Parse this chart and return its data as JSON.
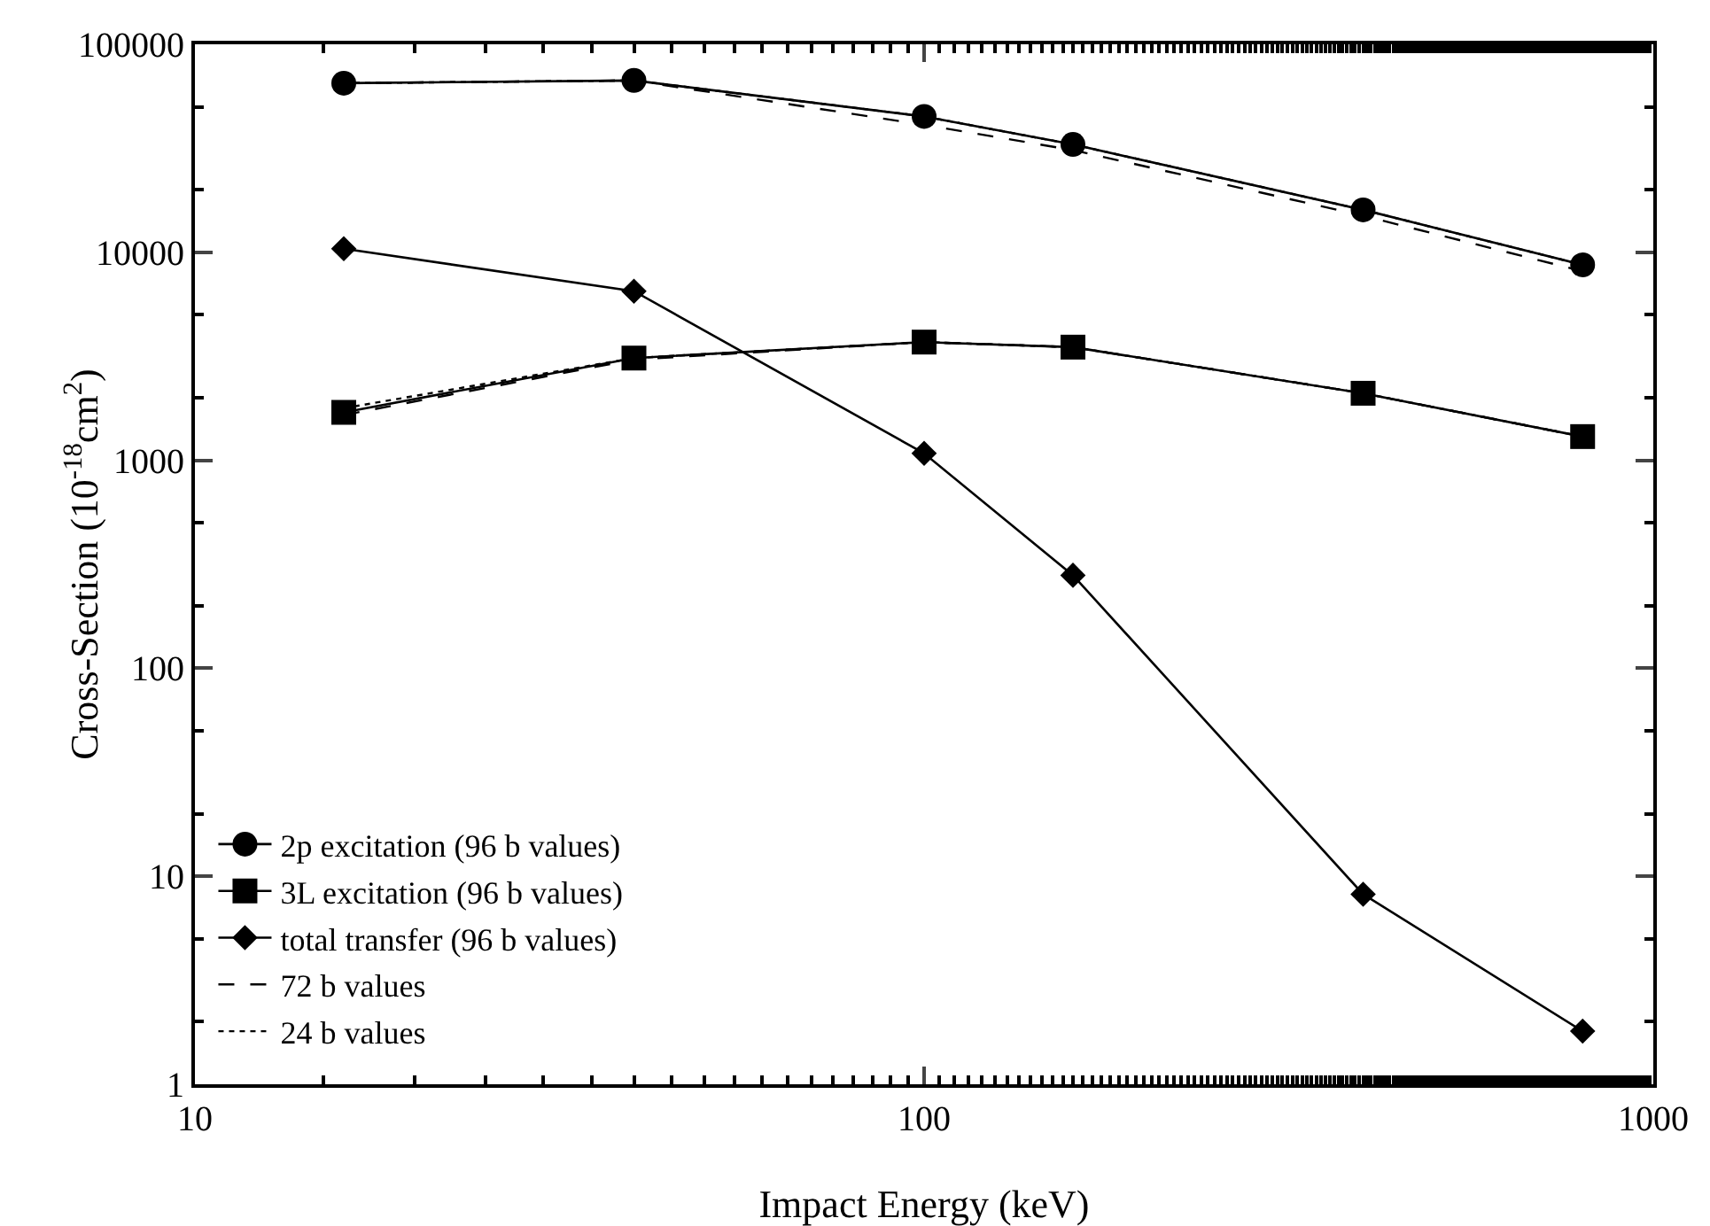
{
  "chart_data": {
    "type": "line",
    "xlabel": "Impact Energy (keV)",
    "ylabel": "Cross-Section (10$^{-18}$cm$^{2}$)",
    "x": [
      16,
      40,
      100,
      160,
      400,
      800
    ],
    "log": "xy",
    "xlim": [
      10,
      1000
    ],
    "xticks": [
      10,
      100,
      1000
    ],
    "ylim": [
      1,
      100000
    ],
    "yticks": [
      1,
      10,
      100,
      1000,
      10000,
      100000
    ],
    "grid": false,
    "legend": "bottom left",
    "series": [
      {
        "name": "2p excitation (96 b values)",
        "color": "#000000",
        "marker": "circle",
        "line_style": "solid",
        "values": [
          65000,
          67000,
          45000,
          33000,
          16000,
          8700
        ]
      },
      {
        "name": "3L excitation (96 b values)",
        "color": "#000000",
        "marker": "square",
        "line_style": "solid",
        "values": [
          1700,
          3100,
          3700,
          3500,
          2100,
          1300
        ]
      },
      {
        "name": "total transfer (96 b values)",
        "color": "#000000",
        "marker": "diamond",
        "line_style": "solid",
        "values": [
          10400,
          6500,
          1080,
          280,
          8.2,
          1.8
        ]
      },
      {
        "name": "72 b values",
        "color": "#000000",
        "marker": "none",
        "line_style": "dashed",
        "values": [
          65000,
          67000,
          41000,
          31000,
          15000,
          8100
        ]
      },
      {
        "color": "#000000",
        "marker": "none",
        "line_style": "dashed",
        "values": [
          1650,
          3050,
          3700,
          3500,
          2100,
          1300
        ]
      },
      {
        "name": "24 b values",
        "color": "#000000",
        "marker": "none",
        "line_style": "dotted",
        "values": [
          65000,
          67000,
          45000,
          33000,
          16000,
          8700
        ]
      },
      {
        "color": "#000000",
        "marker": "none",
        "line_style": "dotted",
        "values": [
          1780,
          3100,
          3700,
          3500,
          2100,
          1300
        ]
      }
    ]
  }
}
